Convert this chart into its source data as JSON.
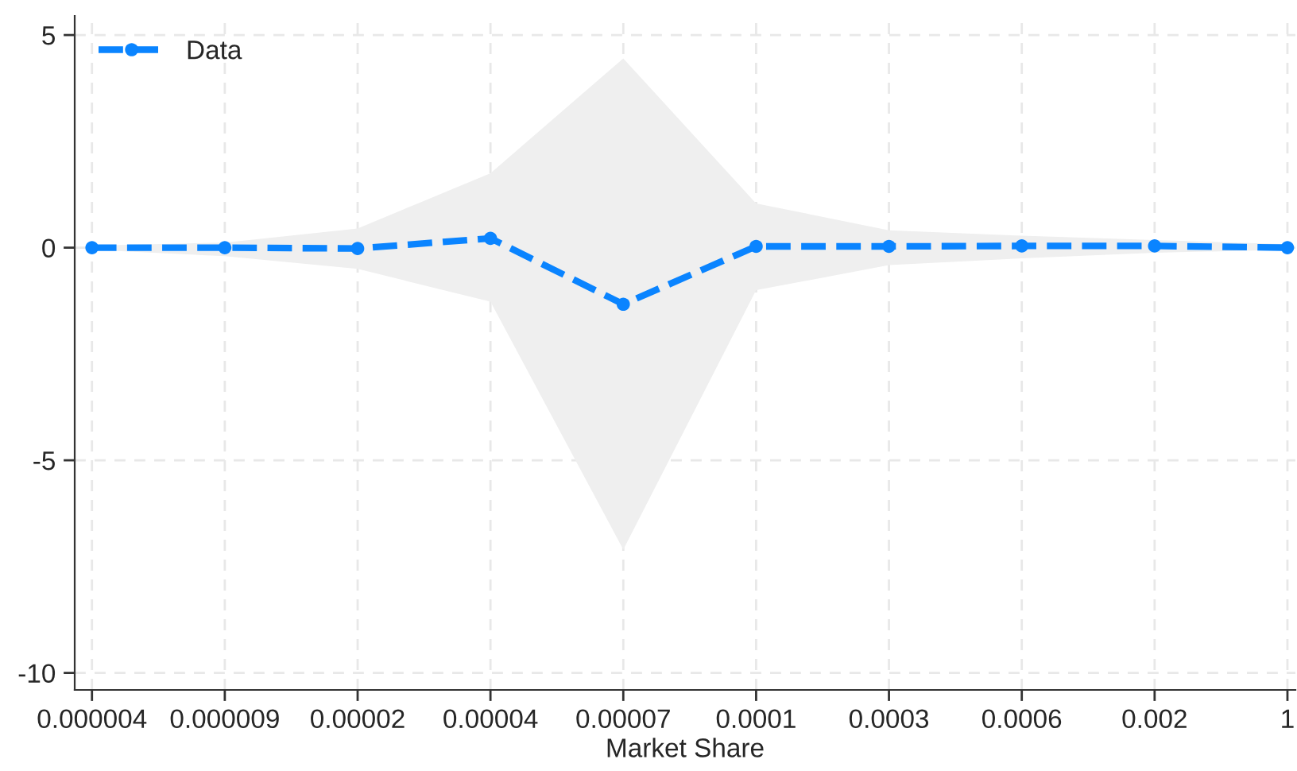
{
  "chart_data": {
    "type": "line",
    "xlabel": "Market Share",
    "categories": [
      "0.000004",
      "0.000009",
      "0.00002",
      "0.00004",
      "0.00007",
      "0.0001",
      "0.0003",
      "0.0006",
      "0.002",
      "1"
    ],
    "series": [
      {
        "name": "Data",
        "color": "#0a84ff",
        "values": [
          0,
          0,
          -0.02,
          0.22,
          -1.33,
          0.03,
          0.03,
          0.04,
          0.04,
          0
        ],
        "lower": [
          -0.05,
          -0.2,
          -0.5,
          -1.27,
          -7.1,
          -1.0,
          -0.41,
          -0.25,
          -0.12,
          -0.05
        ],
        "upper": [
          0.05,
          0.12,
          0.45,
          1.75,
          4.45,
          1.04,
          0.41,
          0.28,
          0.18,
          0.08
        ]
      }
    ],
    "ylim": [
      -10.4,
      5.45
    ],
    "yticks": [
      -10,
      -5,
      0,
      5
    ],
    "grid": true,
    "legend": "top left",
    "marker": "circle",
    "line_style": "dashed"
  }
}
